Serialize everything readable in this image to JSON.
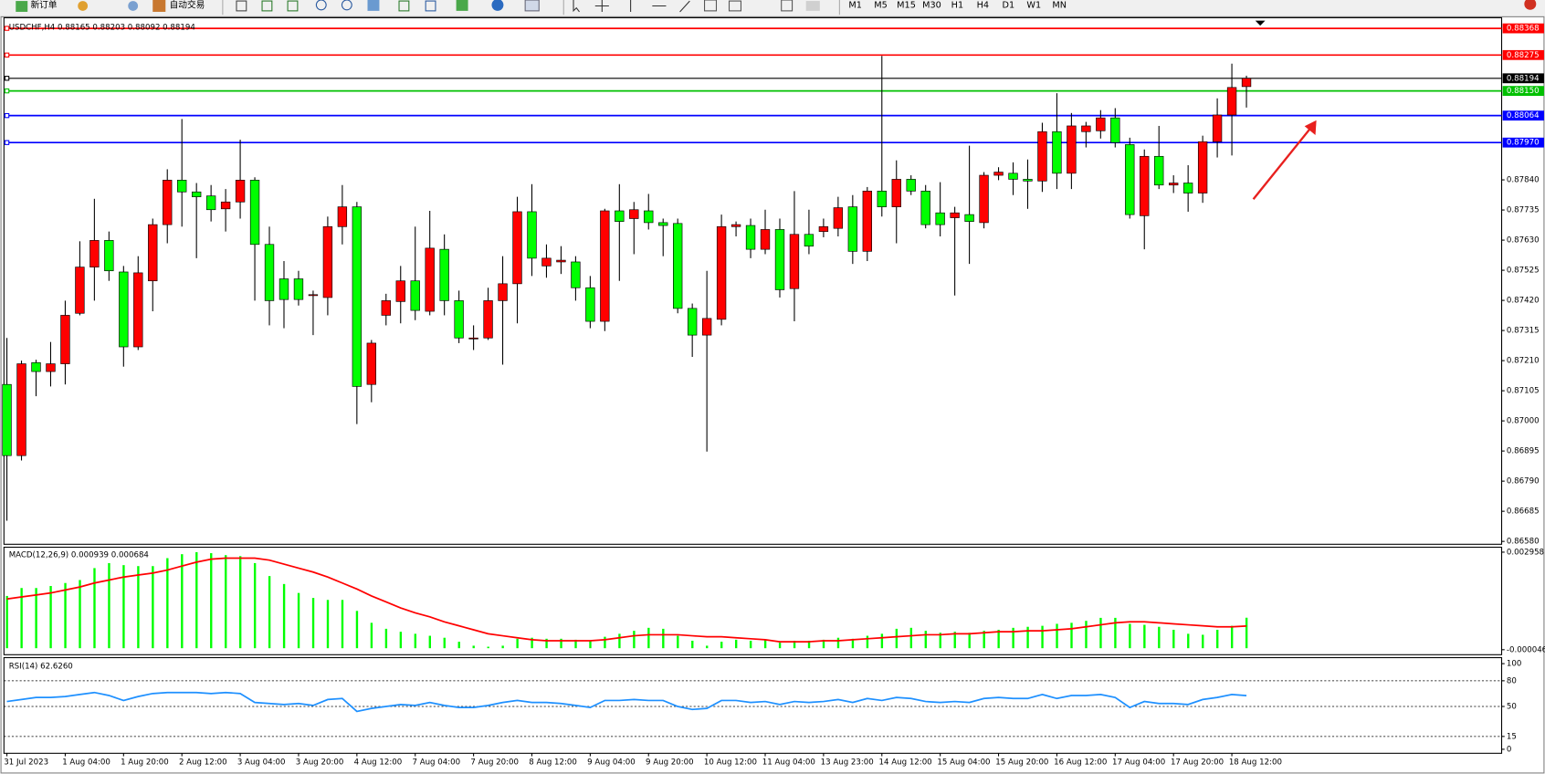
{
  "toolbar": {
    "new_order": "新订单",
    "auto_trading": "自动交易",
    "timeframes": [
      "M1",
      "M5",
      "M15",
      "M30",
      "H1",
      "H4",
      "D1",
      "W1",
      "MN"
    ]
  },
  "chart_data": [
    {
      "type": "candlestick",
      "title": "USDCHF,H4  0.88165 0.88203 0.88092 0.88194",
      "up_color": "#ff0000",
      "down_color": "#00ff00",
      "wick_color": "#000000",
      "x": [
        "31 Jul 2023",
        null,
        null,
        null,
        "1 Aug 04:00",
        null,
        null,
        null,
        "1 Aug 20:00",
        null,
        null,
        null,
        "2 Aug 12:00",
        null,
        null,
        null,
        "3 Aug 04:00",
        null,
        null,
        null,
        "3 Aug 20:00",
        null,
        null,
        null,
        "4 Aug 12:00",
        null,
        null,
        null,
        "7 Aug 04:00",
        null,
        null,
        null,
        "7 Aug 20:00",
        null,
        null,
        null,
        "8 Aug 12:00",
        null,
        null,
        null,
        "9 Aug 04:00",
        null,
        null,
        null,
        "9 Aug 20:00",
        null,
        null,
        null,
        "10 Aug 12:00",
        null,
        null,
        null,
        "11 Aug 04:00",
        null,
        null,
        null,
        "13 Aug 23:00",
        null,
        null,
        null,
        "14 Aug 12:00",
        null,
        null,
        null,
        "15 Aug 04:00",
        null,
        null,
        null,
        "15 Aug 20:00",
        null,
        null,
        null,
        "16 Aug 12:00",
        null,
        null,
        null,
        "17 Aug 04:00",
        null,
        null,
        null,
        "17 Aug 20:00",
        null,
        null,
        null,
        "18 Aug 12:00",
        null
      ],
      "ohlc": [
        [
          0.87127,
          0.87289,
          0.86652,
          0.86879
        ],
        [
          0.86879,
          0.8721,
          0.86862,
          0.87199
        ],
        [
          0.87203,
          0.87213,
          0.87086,
          0.87172
        ],
        [
          0.87172,
          0.87275,
          0.8712,
          0.87199
        ],
        [
          0.87199,
          0.87419,
          0.87127,
          0.87368
        ],
        [
          0.87375,
          0.87626,
          0.87368,
          0.87536
        ],
        [
          0.87536,
          0.87774,
          0.87419,
          0.87629
        ],
        [
          0.87629,
          0.8766,
          0.87488,
          0.87523
        ],
        [
          0.87519,
          0.8754,
          0.87189,
          0.87258
        ],
        [
          0.87258,
          0.87574,
          0.87247,
          0.87516
        ],
        [
          0.87488,
          0.87705,
          0.87382,
          0.87684
        ],
        [
          0.87684,
          0.87877,
          0.87619,
          0.87839
        ],
        [
          0.87839,
          0.88052,
          0.87677,
          0.87798
        ],
        [
          0.87798,
          0.87829,
          0.87567,
          0.87781
        ],
        [
          0.87784,
          0.87822,
          0.87695,
          0.87736
        ],
        [
          0.87739,
          0.87808,
          0.8766,
          0.87763
        ],
        [
          0.87763,
          0.8798,
          0.87705,
          0.87839
        ],
        [
          0.87839,
          0.87849,
          0.87419,
          0.87615
        ],
        [
          0.87615,
          0.87677,
          0.87333,
          0.87419
        ],
        [
          0.87495,
          0.87557,
          0.87323,
          0.87423
        ],
        [
          0.87495,
          0.87523,
          0.87402,
          0.87423
        ],
        [
          0.87437,
          0.87454,
          0.87299,
          0.8744
        ],
        [
          0.8743,
          0.87712,
          0.87368,
          0.87677
        ],
        [
          0.87677,
          0.87822,
          0.87615,
          0.87746
        ],
        [
          0.87746,
          0.87763,
          0.86989,
          0.8712
        ],
        [
          0.87127,
          0.87282,
          0.87065,
          0.87271
        ],
        [
          0.87368,
          0.87443,
          0.87333,
          0.87419
        ],
        [
          0.87416,
          0.8754,
          0.8734,
          0.87488
        ],
        [
          0.87488,
          0.87677,
          0.87351,
          0.87385
        ],
        [
          0.87382,
          0.87732,
          0.87368,
          0.87602
        ],
        [
          0.87598,
          0.8765,
          0.87368,
          0.87419
        ],
        [
          0.87419,
          0.87454,
          0.87271,
          0.87289
        ],
        [
          0.87289,
          0.87333,
          0.87247,
          0.87289
        ],
        [
          0.87289,
          0.87464,
          0.87282,
          0.87419
        ],
        [
          0.87419,
          0.87574,
          0.87196,
          0.87478
        ],
        [
          0.87478,
          0.87781,
          0.8734,
          0.87729
        ],
        [
          0.87729,
          0.87825,
          0.87505,
          0.87567
        ],
        [
          0.8754,
          0.87615,
          0.87499,
          0.87567
        ],
        [
          0.87554,
          0.87609,
          0.87512,
          0.8756
        ],
        [
          0.87554,
          0.87574,
          0.87419,
          0.87464
        ],
        [
          0.87464,
          0.87505,
          0.87323,
          0.87347
        ],
        [
          0.87347,
          0.87739,
          0.87313,
          0.87732
        ],
        [
          0.87732,
          0.87825,
          0.87488,
          0.87695
        ],
        [
          0.87705,
          0.87763,
          0.87581,
          0.87736
        ],
        [
          0.87732,
          0.87791,
          0.87667,
          0.87691
        ],
        [
          0.87691,
          0.87705,
          0.87574,
          0.87681
        ],
        [
          0.87688,
          0.87705,
          0.87375,
          0.87392
        ],
        [
          0.87392,
          0.87409,
          0.87223,
          0.87299
        ],
        [
          0.87299,
          0.87523,
          0.86893,
          0.87357
        ],
        [
          0.87354,
          0.87719,
          0.87333,
          0.87677
        ],
        [
          0.87677,
          0.87695,
          0.87643,
          0.87684
        ],
        [
          0.87681,
          0.87705,
          0.87567,
          0.87598
        ],
        [
          0.87598,
          0.87736,
          0.87581,
          0.87667
        ],
        [
          0.87667,
          0.87705,
          0.8743,
          0.87457
        ],
        [
          0.87461,
          0.87801,
          0.87347,
          0.8765
        ],
        [
          0.8765,
          0.87736,
          0.87581,
          0.87609
        ],
        [
          0.8766,
          0.87705,
          0.8764,
          0.87677
        ],
        [
          0.87671,
          0.87781,
          0.87643,
          0.87743
        ],
        [
          0.87746,
          0.87787,
          0.87547,
          0.87591
        ],
        [
          0.87591,
          0.87815,
          0.87557,
          0.87801
        ],
        [
          0.87801,
          0.88272,
          0.87712,
          0.87746
        ],
        [
          0.87746,
          0.87908,
          0.87619,
          0.87842
        ],
        [
          0.87842,
          0.87856,
          0.87787,
          0.87801
        ],
        [
          0.87801,
          0.87822,
          0.87671,
          0.87684
        ],
        [
          0.87725,
          0.87832,
          0.87643,
          0.87684
        ],
        [
          0.87708,
          0.87746,
          0.87437,
          0.87725
        ],
        [
          0.87719,
          0.87959,
          0.87547,
          0.87695
        ],
        [
          0.87691,
          0.87867,
          0.87671,
          0.87856
        ],
        [
          0.87856,
          0.87884,
          0.87839,
          0.87867
        ],
        [
          0.87863,
          0.87901,
          0.87787,
          0.87842
        ],
        [
          0.87842,
          0.87911,
          0.87739,
          0.87836
        ],
        [
          0.87836,
          0.88039,
          0.87798,
          0.88008
        ],
        [
          0.88008,
          0.88142,
          0.87808,
          0.87863
        ],
        [
          0.87863,
          0.88073,
          0.87808,
          0.88028
        ],
        [
          0.88008,
          0.88042,
          0.87953,
          0.88028
        ],
        [
          0.88011,
          0.88083,
          0.87984,
          0.88056
        ],
        [
          0.88056,
          0.8809,
          0.87953,
          0.8797
        ],
        [
          0.87963,
          0.87987,
          0.87705,
          0.87719
        ],
        [
          0.87715,
          0.87946,
          0.87598,
          0.87922
        ],
        [
          0.87922,
          0.88028,
          0.87808,
          0.87822
        ],
        [
          0.87822,
          0.87856,
          0.87794,
          0.87829
        ],
        [
          0.87829,
          0.87891,
          0.87729,
          0.87794
        ],
        [
          0.87794,
          0.87994,
          0.8776,
          0.87973
        ],
        [
          0.87973,
          0.88124,
          0.87918,
          0.88066
        ],
        [
          0.88066,
          0.88245,
          0.87925,
          0.88162
        ],
        [
          0.88165,
          0.88203,
          0.88092,
          0.88194
        ]
      ],
      "ylim": [
        0.8657,
        0.88405
      ],
      "yticks": [
        {
          "value": 0.8784,
          "label": "0.87840"
        },
        0.87735,
        {
          "value": 0.8763,
          "label": "0.87630"
        },
        0.87525,
        {
          "value": 0.8742,
          "label": "0.87420"
        },
        0.87315,
        {
          "value": 0.8721,
          "label": "0.87210"
        },
        0.87105,
        {
          "value": 0.87,
          "label": "0.87000"
        },
        0.86895,
        {
          "value": 0.8679,
          "label": "0.86790"
        },
        0.86685,
        {
          "value": 0.8658,
          "label": "0.86580"
        }
      ],
      "hlines": [
        {
          "value": 0.88368,
          "color": "#ff0000"
        },
        {
          "value": 0.88275,
          "color": "#ff0000"
        },
        {
          "value": 0.88194,
          "color": "#000000"
        },
        {
          "value": 0.8815,
          "label": "0.88150",
          "color": "#00c000"
        },
        {
          "value": 0.88064,
          "color": "#0000ff"
        },
        {
          "value": 0.8797,
          "label": "0.87970",
          "color": "#0000ff"
        }
      ]
    },
    {
      "type": "macd",
      "title": "MACD(12,26,9) 0.000939 0.000684",
      "ylim": [
        -0.0002,
        0.00311
      ],
      "yticks": [
        0.002958,
        -4.6e-05
      ],
      "series": [
        {
          "color": "#00ff00",
          "values": [
            0.001609,
            0.001854,
            0.001854,
            0.001916,
            0.002008,
            0.0021,
            0.002467,
            0.002621,
            0.002559,
            0.002529,
            0.002529,
            0.002774,
            0.002896,
            0.002958,
            0.002927,
            0.002866,
            0.002835,
            0.002621,
            0.002222,
            0.001977,
            0.001701,
            0.001548,
            0.001487,
            0.001487,
            0.001149,
            0.000782,
            0.000598,
            0.000506,
            0.000444,
            0.000383,
            0.000322,
            0.000199,
            7.7e-05,
            4.6e-05,
            7.7e-05,
            0.000291,
            0.000322,
            0.000291,
            0.000291,
            0.000261,
            0.00023,
            0.000352,
            0.000444,
            0.000536,
            0.000628,
            0.000598,
            0.000383,
            0.00023,
            7.7e-05,
            0.000199,
            0.000261,
            0.00023,
            0.000261,
            0.000169,
            0.00023,
            0.00023,
            0.000261,
            0.000322,
            0.000291,
            0.000383,
            0.000444,
            0.000598,
            0.000628,
            0.000536,
            0.000475,
            0.000506,
            0.000475,
            0.000536,
            0.000567,
            0.000628,
            0.000659,
            0.00069,
            0.000751,
            0.000782,
            0.000843,
            0.000935,
            0.000935,
            0.000751,
            0.00072,
            0.000659,
            0.000567,
            0.000444,
            0.000414,
            0.000567,
            0.00069,
            0.000939
          ]
        },
        {
          "color": "#ff0000",
          "values": [
            0.001517,
            0.001578,
            0.00164,
            0.001701,
            0.001793,
            0.001885,
            0.002008,
            0.0021,
            0.002191,
            0.002253,
            0.002314,
            0.002406,
            0.002529,
            0.002651,
            0.002743,
            0.002774,
            0.002774,
            0.002774,
            0.002713,
            0.00259,
            0.002467,
            0.002345,
            0.002191,
            0.002008,
            0.001824,
            0.001609,
            0.001425,
            0.001241,
            0.001088,
            0.000965,
            0.000812,
            0.00069,
            0.000567,
            0.000444,
            0.000383,
            0.000322,
            0.000261,
            0.00023,
            0.00023,
            0.00023,
            0.00023,
            0.000261,
            0.000322,
            0.000383,
            0.000414,
            0.000414,
            0.000414,
            0.000383,
            0.000352,
            0.000352,
            0.000322,
            0.000291,
            0.000261,
            0.000199,
            0.000199,
            0.000199,
            0.00023,
            0.00023,
            0.000261,
            0.000291,
            0.000322,
            0.000352,
            0.000383,
            0.000414,
            0.000414,
            0.000444,
            0.000444,
            0.000475,
            0.000506,
            0.000506,
            0.000536,
            0.000536,
            0.000567,
            0.000598,
            0.000659,
            0.00072,
            0.000782,
            0.000812,
            0.000812,
            0.000782,
            0.000751,
            0.00072,
            0.00069,
            0.000659,
            0.000659,
            0.000684
          ]
        }
      ]
    },
    {
      "type": "line",
      "title": "RSI(14) 62.6260",
      "ylim": [
        -4.7,
        107
      ],
      "yticks": [
        100,
        80,
        50,
        15,
        0
      ],
      "levels": [
        80,
        50,
        15
      ],
      "series": [
        {
          "color": "#1e90ff",
          "values": [
            55.8,
            58.1,
            60.5,
            60.5,
            61.6,
            64.0,
            66.3,
            62.8,
            57.0,
            61.6,
            65.1,
            66.3,
            66.3,
            66.3,
            65.1,
            66.3,
            65.1,
            54.7,
            53.5,
            52.3,
            53.5,
            51.2,
            58.1,
            59.3,
            44.2,
            47.7,
            50.0,
            52.3,
            51.2,
            54.7,
            51.2,
            48.8,
            48.8,
            51.2,
            54.7,
            57.0,
            54.7,
            54.7,
            53.5,
            51.2,
            48.8,
            57.0,
            57.0,
            58.1,
            57.0,
            57.0,
            50.0,
            46.5,
            47.7,
            57.0,
            57.0,
            54.7,
            55.8,
            52.3,
            55.8,
            54.7,
            55.8,
            58.1,
            54.7,
            59.3,
            57.0,
            60.5,
            59.3,
            55.8,
            54.7,
            55.8,
            54.7,
            59.3,
            60.5,
            59.3,
            59.3,
            64.0,
            59.3,
            62.8,
            62.8,
            64.0,
            60.5,
            48.8,
            55.8,
            53.5,
            53.5,
            52.3,
            58.1,
            60.5,
            64.0,
            62.626
          ]
        }
      ]
    }
  ]
}
